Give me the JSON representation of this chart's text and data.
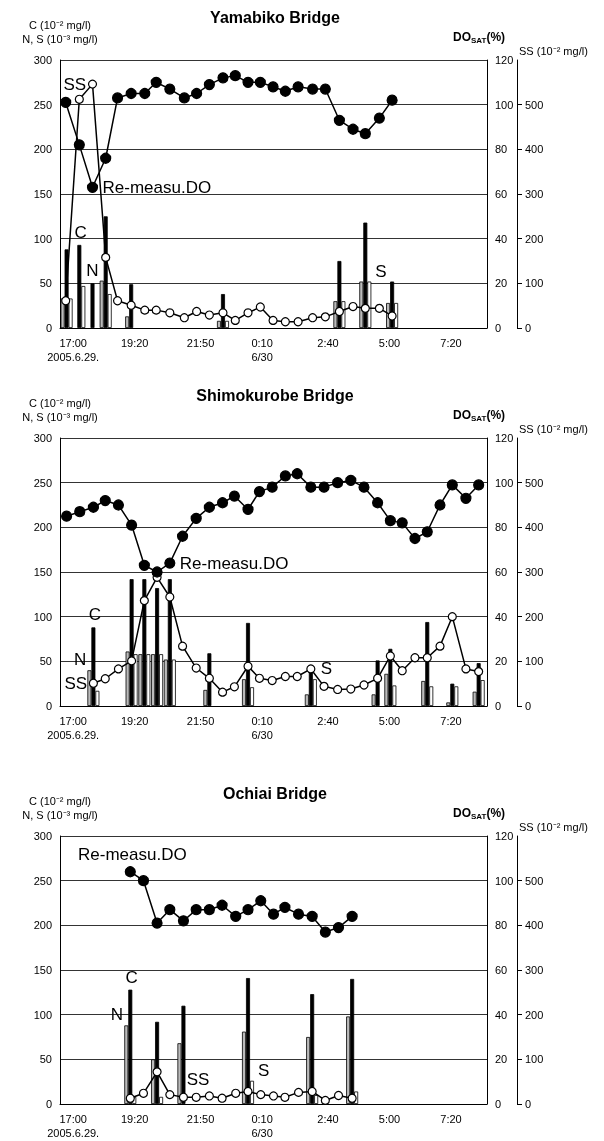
{
  "chart_data": [
    {
      "type": "bar",
      "title": "Yamabiko Bridge",
      "ylabel": "C (10⁻² mg/l)\nN, S (10⁻³ mg/l)",
      "y2label": "DO$_{SAT}$(%)",
      "y3label": "SS (10⁻² mg/l)",
      "xlim": [
        "2005-06-29T16:30",
        "2005-06-30T08:42"
      ],
      "xticks": [
        {
          "value": "2005-06-29T17:00",
          "label": "17:00\n2005.6.29."
        },
        {
          "value": "2005-06-29T19:20",
          "label": "19:20"
        },
        {
          "value": "2005-06-29T21:50",
          "label": "21:50"
        },
        {
          "value": "2005-06-30T00:10",
          "label": "0:10\n6/30"
        },
        {
          "value": "2005-06-30T02:40",
          "label": "2:40"
        },
        {
          "value": "2005-06-30T05:00",
          "label": "5:00"
        },
        {
          "value": "2005-06-30T07:20",
          "label": "7:20"
        }
      ],
      "ylim": [
        0,
        300
      ],
      "yticks": [
        0,
        50,
        100,
        150,
        200,
        250,
        300
      ],
      "y2lim": [
        0,
        120
      ],
      "y2ticks": [
        0,
        20,
        40,
        60,
        80,
        100,
        120
      ],
      "y3lim": [
        0,
        600
      ],
      "y3ticks": [
        0,
        100,
        200,
        300,
        400,
        500
      ],
      "grid": "y",
      "legend": false,
      "series": [
        {
          "name": "N",
          "color": "#bbbbbb",
          "x": [
            "2005-06-29T16:45",
            "2005-06-29T17:14",
            "2005-06-29T17:44",
            "2005-06-29T18:14",
            "2005-06-29T19:12",
            "2005-06-29T22:41",
            "2005-06-30T03:06",
            "2005-06-30T04:05",
            "2005-06-30T05:06"
          ],
          "values": [
            33,
            null,
            null,
            53,
            13,
            8,
            30,
            52,
            28
          ]
        },
        {
          "name": "C",
          "color": "#000000",
          "x": [
            "2005-06-29T16:45",
            "2005-06-29T17:14",
            "2005-06-29T17:44",
            "2005-06-29T18:14",
            "2005-06-29T19:12",
            "2005-06-29T22:41",
            "2005-06-30T03:06",
            "2005-06-30T04:05",
            "2005-06-30T05:06"
          ],
          "values": [
            88,
            93,
            50,
            125,
            49,
            38,
            75,
            118,
            52
          ]
        },
        {
          "name": "S",
          "color": "#ffffff",
          "x": [
            "2005-06-29T16:45",
            "2005-06-29T17:14",
            "2005-06-29T17:44",
            "2005-06-29T18:14",
            "2005-06-29T19:12",
            "2005-06-29T22:41",
            "2005-06-30T03:06",
            "2005-06-30T04:05",
            "2005-06-30T05:06"
          ],
          "values": [
            33,
            47,
            null,
            38,
            null,
            8,
            30,
            52,
            28
          ]
        },
        {
          "name": "SS",
          "type": "line",
          "axis": "y3",
          "color": "#ffffff",
          "marker": "circle",
          "x": [
            "2005-06-29T16:43",
            "2005-06-29T17:14",
            "2005-06-29T17:44",
            "2005-06-29T18:14",
            "2005-06-29T18:41",
            "2005-06-29T19:12",
            "2005-06-29T19:43",
            "2005-06-29T20:09",
            "2005-06-29T20:40",
            "2005-06-29T21:13",
            "2005-06-29T21:41",
            "2005-06-29T22:10",
            "2005-06-29T22:41",
            "2005-06-29T23:09",
            "2005-06-29T23:38",
            "2005-06-30T00:06",
            "2005-06-30T00:35",
            "2005-06-30T01:03",
            "2005-06-30T01:32",
            "2005-06-30T02:05",
            "2005-06-30T02:34",
            "2005-06-30T03:06",
            "2005-06-30T03:37",
            "2005-06-30T04:05",
            "2005-06-30T04:37",
            "2005-06-30T05:06"
          ],
          "values": [
            61,
            512,
            546,
            158,
            61,
            51,
            40,
            40,
            34,
            23,
            37,
            29,
            34,
            17,
            34,
            47,
            17,
            14,
            14,
            23,
            25,
            37,
            48,
            44,
            44,
            27
          ]
        },
        {
          "name": "Re-measu.DO",
          "type": "line",
          "axis": "y2",
          "color": "#000000",
          "marker": "circle",
          "x": [
            "2005-06-29T16:43",
            "2005-06-29T17:14",
            "2005-06-29T17:44",
            "2005-06-29T18:14",
            "2005-06-29T18:41",
            "2005-06-29T19:12",
            "2005-06-29T19:43",
            "2005-06-29T20:09",
            "2005-06-29T20:40",
            "2005-06-29T21:13",
            "2005-06-29T21:41",
            "2005-06-29T22:10",
            "2005-06-29T22:41",
            "2005-06-29T23:09",
            "2005-06-29T23:38",
            "2005-06-30T00:06",
            "2005-06-30T00:35",
            "2005-06-30T01:03",
            "2005-06-30T01:32",
            "2005-06-30T02:05",
            "2005-06-30T02:34",
            "2005-06-30T03:06",
            "2005-06-30T03:37",
            "2005-06-30T04:05",
            "2005-06-30T04:37",
            "2005-06-30T05:06"
          ],
          "values": [
            101,
            82,
            63,
            76,
            103,
            105,
            105,
            110,
            107,
            103,
            105,
            109,
            112,
            113,
            110,
            110,
            108,
            106,
            108,
            107,
            107,
            93,
            89,
            87,
            94,
            102
          ]
        }
      ]
    },
    {
      "type": "bar",
      "title": "Shimokurobe Bridge",
      "ylabel": "C (10⁻² mg/l)\nN, S (10⁻³ mg/l)",
      "y2label": "DO$_{SAT}$(%)",
      "y3label": "SS (10⁻² mg/l)",
      "xlim": [
        "2005-06-29T16:30",
        "2005-06-30T08:42"
      ],
      "xticks": [
        {
          "value": "2005-06-29T17:00",
          "label": "17:00\n2005.6.29."
        },
        {
          "value": "2005-06-29T19:20",
          "label": "19:20"
        },
        {
          "value": "2005-06-29T21:50",
          "label": "21:50"
        },
        {
          "value": "2005-06-30T00:10",
          "label": "0:10\n6/30"
        },
        {
          "value": "2005-06-30T02:40",
          "label": "2:40"
        },
        {
          "value": "2005-06-30T05:00",
          "label": "5:00"
        },
        {
          "value": "2005-06-30T07:20",
          "label": "7:20"
        }
      ],
      "ylim": [
        0,
        300
      ],
      "yticks": [
        0,
        50,
        100,
        150,
        200,
        250,
        300
      ],
      "y2lim": [
        0,
        120
      ],
      "y2ticks": [
        0,
        20,
        40,
        60,
        80,
        100,
        120
      ],
      "y3lim": [
        0,
        600
      ],
      "y3ticks": [
        0,
        100,
        200,
        300,
        400,
        500
      ],
      "grid": "y",
      "legend": false,
      "series": [
        {
          "name": "N",
          "color": "#bbbbbb",
          "x": [
            "2005-06-29T17:46",
            "2005-06-29T19:13",
            "2005-06-29T19:42",
            "2005-06-29T20:11",
            "2005-06-29T20:40",
            "2005-06-29T22:10",
            "2005-06-29T23:38",
            "2005-06-30T02:01",
            "2005-06-30T04:33",
            "2005-06-30T05:02",
            "2005-06-30T06:26",
            "2005-06-30T07:23",
            "2005-06-30T08:23"
          ],
          "values": [
            40,
            61,
            58,
            58,
            52,
            18,
            30,
            13,
            13,
            36,
            28,
            4,
            16
          ]
        },
        {
          "name": "C",
          "color": "#000000",
          "x": [
            "2005-06-29T17:46",
            "2005-06-29T19:13",
            "2005-06-29T19:42",
            "2005-06-29T20:11",
            "2005-06-29T20:40",
            "2005-06-29T22:10",
            "2005-06-29T23:38",
            "2005-06-30T02:01",
            "2005-06-30T04:33",
            "2005-06-30T05:02",
            "2005-06-30T06:26",
            "2005-06-30T07:23",
            "2005-06-30T08:23"
          ],
          "values": [
            88,
            142,
            142,
            132,
            142,
            59,
            93,
            41,
            51,
            64,
            94,
            25,
            48
          ]
        },
        {
          "name": "S",
          "color": "#ffffff",
          "x": [
            "2005-06-29T17:46",
            "2005-06-29T19:13",
            "2005-06-29T19:42",
            "2005-06-29T20:11",
            "2005-06-29T20:40",
            "2005-06-29T22:10",
            "2005-06-29T23:38",
            "2005-06-30T02:01",
            "2005-06-30T04:33",
            "2005-06-30T05:02",
            "2005-06-30T06:26",
            "2005-06-30T07:23",
            "2005-06-30T08:23"
          ],
          "values": [
            17,
            58,
            58,
            58,
            52,
            null,
            21,
            30,
            null,
            23,
            22,
            22,
            29
          ]
        },
        {
          "name": "SS",
          "type": "line",
          "axis": "y3",
          "color": "#ffffff",
          "marker": "circle",
          "x": [
            "2005-06-29T17:46",
            "2005-06-29T18:13",
            "2005-06-29T18:43",
            "2005-06-29T19:13",
            "2005-06-29T19:42",
            "2005-06-29T20:11",
            "2005-06-29T20:40",
            "2005-06-29T21:09",
            "2005-06-29T21:40",
            "2005-06-29T22:10",
            "2005-06-29T22:40",
            "2005-06-29T23:07",
            "2005-06-29T23:38",
            "2005-06-30T00:04",
            "2005-06-30T00:33",
            "2005-06-30T01:03",
            "2005-06-30T01:30",
            "2005-06-30T02:01",
            "2005-06-30T02:31",
            "2005-06-30T03:02",
            "2005-06-30T03:32",
            "2005-06-30T04:02",
            "2005-06-30T04:33",
            "2005-06-30T05:02",
            "2005-06-30T05:29",
            "2005-06-30T05:58",
            "2005-06-30T06:26",
            "2005-06-30T06:55",
            "2005-06-30T07:23",
            "2005-06-30T07:54",
            "2005-06-30T08:23"
          ],
          "values": [
            51,
            61,
            83,
            101,
            236,
            288,
            244,
            134,
            85,
            62,
            31,
            43,
            89,
            62,
            57,
            66,
            66,
            83,
            44,
            37,
            38,
            47,
            62,
            112,
            79,
            108,
            108,
            134,
            200,
            83,
            77
          ]
        },
        {
          "name": "Re-measu.DO",
          "type": "line",
          "axis": "y2",
          "color": "#000000",
          "marker": "circle",
          "x": [
            "2005-06-29T16:45",
            "2005-06-29T17:15",
            "2005-06-29T17:46",
            "2005-06-29T18:13",
            "2005-06-29T18:43",
            "2005-06-29T19:13",
            "2005-06-29T19:42",
            "2005-06-29T20:11",
            "2005-06-29T20:40",
            "2005-06-29T21:09",
            "2005-06-29T21:40",
            "2005-06-29T22:10",
            "2005-06-29T22:40",
            "2005-06-29T23:07",
            "2005-06-29T23:38",
            "2005-06-30T00:04",
            "2005-06-30T00:33",
            "2005-06-30T01:03",
            "2005-06-30T01:30",
            "2005-06-30T02:01",
            "2005-06-30T02:31",
            "2005-06-30T03:02",
            "2005-06-30T03:32",
            "2005-06-30T04:02",
            "2005-06-30T04:33",
            "2005-06-30T05:02",
            "2005-06-30T05:29",
            "2005-06-30T05:58",
            "2005-06-30T06:26",
            "2005-06-30T06:55",
            "2005-06-30T07:23",
            "2005-06-30T07:54",
            "2005-06-30T08:23"
          ],
          "values": [
            85,
            87,
            89,
            92,
            90,
            81,
            63,
            60,
            64,
            76,
            84,
            89,
            91,
            94,
            88,
            96,
            98,
            103,
            104,
            98,
            98,
            100,
            101,
            98,
            91,
            83,
            82,
            75,
            78,
            90,
            99,
            93,
            99
          ]
        }
      ]
    },
    {
      "type": "bar",
      "title": "Ochiai Bridge",
      "ylabel": "C (10⁻² mg/l)\nN, S (10⁻³ mg/l)",
      "y2label": "DO$_{SAT}$(%)",
      "y3label": "SS (10⁻² mg/l)",
      "xlim": [
        "2005-06-29T16:30",
        "2005-06-30T08:42"
      ],
      "xticks": [
        {
          "value": "2005-06-29T17:00",
          "label": "17:00\n2005.6.29."
        },
        {
          "value": "2005-06-29T19:20",
          "label": "19:20"
        },
        {
          "value": "2005-06-29T21:50",
          "label": "21:50"
        },
        {
          "value": "2005-06-30T00:10",
          "label": "0:10\n6/30"
        },
        {
          "value": "2005-06-30T02:40",
          "label": "2:40"
        },
        {
          "value": "2005-06-30T05:00",
          "label": "5:00"
        },
        {
          "value": "2005-06-30T07:20",
          "label": "7:20"
        }
      ],
      "ylim": [
        0,
        300
      ],
      "yticks": [
        0,
        50,
        100,
        150,
        200,
        250,
        300
      ],
      "y2lim": [
        0,
        120
      ],
      "y2ticks": [
        0,
        20,
        40,
        60,
        80,
        100,
        120
      ],
      "y3lim": [
        0,
        600
      ],
      "y3ticks": [
        0,
        100,
        200,
        300,
        400,
        500
      ],
      "grid": "y",
      "legend": false,
      "series": [
        {
          "name": "N",
          "color": "#bbbbbb",
          "x": [
            "2005-06-29T19:10",
            "2005-06-29T20:11",
            "2005-06-29T21:11",
            "2005-06-29T23:38",
            "2005-06-30T02:04",
            "2005-06-30T03:35"
          ],
          "values": [
            88,
            50,
            68,
            81,
            75,
            98
          ]
        },
        {
          "name": "C",
          "color": "#000000",
          "x": [
            "2005-06-29T19:10",
            "2005-06-29T20:11",
            "2005-06-29T21:11",
            "2005-06-29T23:38",
            "2005-06-30T02:04",
            "2005-06-30T03:35"
          ],
          "values": [
            128,
            92,
            110,
            141,
            123,
            140
          ]
        },
        {
          "name": "S",
          "color": "#ffffff",
          "x": [
            "2005-06-29T19:10",
            "2005-06-29T20:11",
            "2005-06-29T21:11",
            "2005-06-29T23:38",
            "2005-06-30T02:04",
            "2005-06-30T03:35"
          ],
          "values": [
            8,
            8,
            null,
            26,
            10,
            14
          ]
        },
        {
          "name": "SS",
          "type": "line",
          "axis": "y3",
          "color": "#ffffff",
          "marker": "circle",
          "x": [
            "2005-06-29T19:10",
            "2005-06-29T19:40",
            "2005-06-29T20:11",
            "2005-06-29T20:40",
            "2005-06-29T21:11",
            "2005-06-29T21:40",
            "2005-06-29T22:10",
            "2005-06-29T22:39",
            "2005-06-29T23:10",
            "2005-06-29T23:38",
            "2005-06-30T00:07",
            "2005-06-30T00:36",
            "2005-06-30T01:02",
            "2005-06-30T01:33",
            "2005-06-30T02:04",
            "2005-06-30T02:34",
            "2005-06-30T03:04",
            "2005-06-30T03:35"
          ],
          "values": [
            13,
            24,
            72,
            21,
            15,
            15,
            18,
            13,
            24,
            28,
            21,
            18,
            15,
            26,
            28,
            8,
            19,
            13
          ]
        },
        {
          "name": "Re-measu.DO",
          "type": "line",
          "axis": "y2",
          "color": "#000000",
          "marker": "circle",
          "x": [
            "2005-06-29T19:10",
            "2005-06-29T19:40",
            "2005-06-29T20:11",
            "2005-06-29T20:40",
            "2005-06-29T21:11",
            "2005-06-29T21:40",
            "2005-06-29T22:10",
            "2005-06-29T22:39",
            "2005-06-29T23:10",
            "2005-06-29T23:38",
            "2005-06-30T00:07",
            "2005-06-30T00:36",
            "2005-06-30T01:02",
            "2005-06-30T01:33",
            "2005-06-30T02:04",
            "2005-06-30T02:34",
            "2005-06-30T03:04",
            "2005-06-30T03:35"
          ],
          "values": [
            104,
            100,
            81,
            87,
            82,
            87,
            87,
            89,
            84,
            87,
            91,
            85,
            88,
            85,
            84,
            77,
            79,
            84
          ]
        }
      ]
    }
  ]
}
